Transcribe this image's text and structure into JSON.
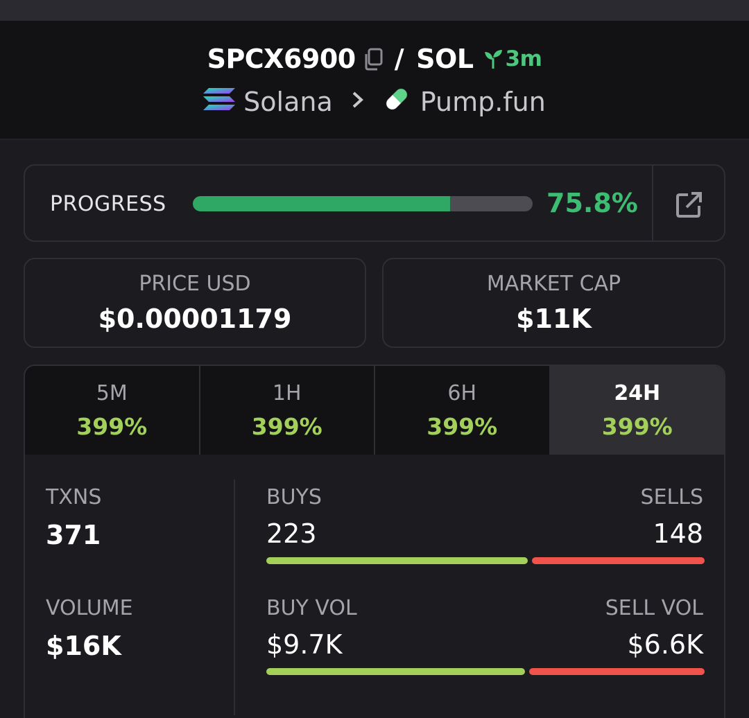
{
  "header": {
    "token_symbol": "SPCX6900",
    "slash": "/",
    "quote_symbol": "SOL",
    "age": "3m",
    "chain": "Solana",
    "dex": "Pump.fun",
    "icons": [
      "copy-icon",
      "seedling-icon",
      "solana-icon",
      "chevron-right-icon",
      "pill-icon"
    ]
  },
  "progress": {
    "label": "PROGRESS",
    "value_text": "75.8%",
    "fraction": 0.758,
    "link_icon": "external-link-icon"
  },
  "stats": {
    "price_label": "PRICE USD",
    "price_value": "$0.00001179",
    "mcap_label": "MARKET CAP",
    "mcap_value": "$11K"
  },
  "tabs": [
    {
      "label": "5M",
      "value": "399%"
    },
    {
      "label": "1H",
      "value": "399%"
    },
    {
      "label": "6H",
      "value": "399%"
    },
    {
      "label": "24H",
      "value": "399%",
      "active": true
    }
  ],
  "details": {
    "txns_label": "TXNS",
    "txns_value": "371",
    "volume_label": "VOLUME",
    "volume_value": "$16K",
    "buys_label": "BUYS",
    "buys_value": "223",
    "sells_label": "SELLS",
    "sells_value": "148",
    "buy_vol_label": "BUY VOL",
    "buy_vol_value": "$9.7K",
    "sell_vol_label": "SELL VOL",
    "sell_vol_value": "$6.6K",
    "buys_fraction": 0.601,
    "buy_vol_fraction": 0.595
  },
  "colors": {
    "accent_green": "#3dbd72",
    "change_green": "#a3d05a",
    "sell_red": "#f0524c"
  }
}
